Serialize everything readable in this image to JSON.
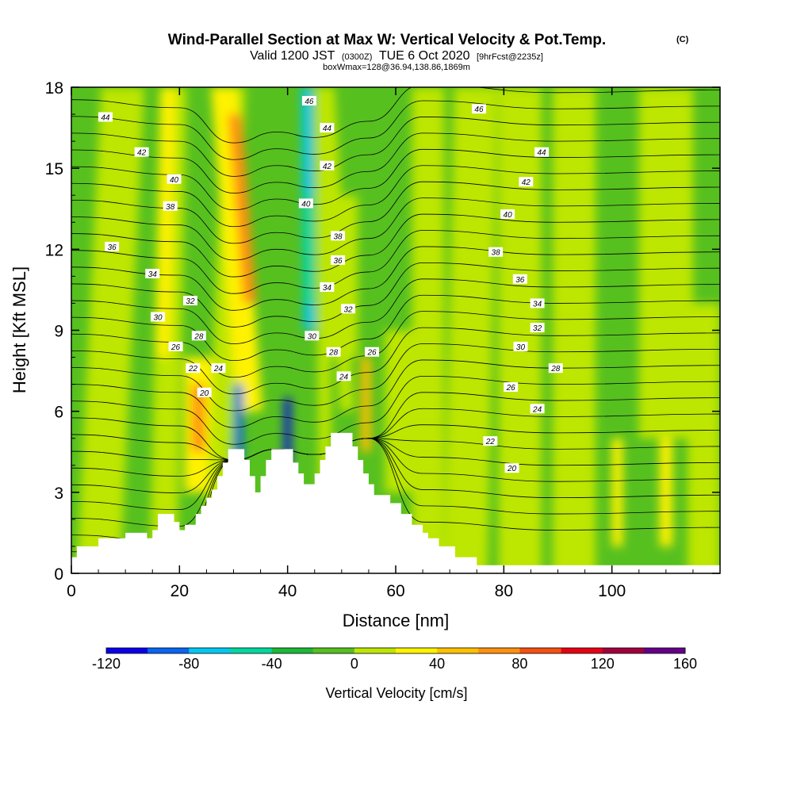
{
  "chart_data": {
    "type": "heatmap",
    "title": "Wind-Parallel Section at Max W: Vertical Velocity & Pot.Temp.",
    "title_tag": "(C)",
    "subtitle": {
      "main_a": "Valid 1200 JST",
      "small_a": "(0300Z)",
      "main_b": "TUE 6 Oct 2020",
      "small_b": "[9hrFcst@2235z]"
    },
    "subtitle2": "boxWmax=128@36.94,138.86,1869m",
    "xlabel": "Distance [nm]",
    "ylabel": "Height [Kft MSL]",
    "xlim": [
      0,
      120
    ],
    "ylim": [
      0,
      18
    ],
    "x_ticks": [
      0,
      20,
      40,
      60,
      80,
      100
    ],
    "y_ticks": [
      0,
      3,
      6,
      9,
      12,
      15,
      18
    ],
    "colorbar": {
      "title": "Vertical Velocity [cm/s]",
      "min": -120,
      "max": 160,
      "step": 20,
      "tick_labels": [
        -120,
        -80,
        -40,
        0,
        40,
        80,
        120,
        160
      ],
      "colors": [
        "#0a00e8",
        "#0a64f0",
        "#00c8f0",
        "#00d8a0",
        "#1db83a",
        "#56c01f",
        "#bde600",
        "#fff200",
        "#ffc000",
        "#ff9010",
        "#f45010",
        "#e60014",
        "#a0003c",
        "#640088"
      ]
    },
    "theta_contour_labels": [
      {
        "value": "44",
        "x": 6.3,
        "y": 16.9
      },
      {
        "value": "42",
        "x": 13,
        "y": 15.6
      },
      {
        "value": "40",
        "x": 19,
        "y": 14.6
      },
      {
        "value": "38",
        "x": 18.3,
        "y": 13.6
      },
      {
        "value": "36",
        "x": 7.5,
        "y": 12.1
      },
      {
        "value": "34",
        "x": 15,
        "y": 11.1
      },
      {
        "value": "32",
        "x": 22,
        "y": 10.1
      },
      {
        "value": "30",
        "x": 16,
        "y": 9.5
      },
      {
        "value": "28",
        "x": 23.6,
        "y": 8.8
      },
      {
        "value": "26",
        "x": 19.3,
        "y": 8.4
      },
      {
        "value": "24",
        "x": 27.2,
        "y": 7.6
      },
      {
        "value": "22",
        "x": 22.5,
        "y": 7.6
      },
      {
        "value": "20",
        "x": 24.6,
        "y": 6.7
      },
      {
        "value": "46",
        "x": 44,
        "y": 17.5
      },
      {
        "value": "44",
        "x": 47.3,
        "y": 16.5
      },
      {
        "value": "42",
        "x": 47.3,
        "y": 15.1
      },
      {
        "value": "40",
        "x": 43.4,
        "y": 13.7
      },
      {
        "value": "38",
        "x": 49.3,
        "y": 12.5
      },
      {
        "value": "36",
        "x": 49.3,
        "y": 11.6
      },
      {
        "value": "34",
        "x": 47.3,
        "y": 10.6
      },
      {
        "value": "32",
        "x": 51.2,
        "y": 9.8
      },
      {
        "value": "30",
        "x": 44.5,
        "y": 8.8
      },
      {
        "value": "28",
        "x": 48.5,
        "y": 8.2
      },
      {
        "value": "26",
        "x": 55.6,
        "y": 8.2
      },
      {
        "value": "24",
        "x": 50.4,
        "y": 7.3
      },
      {
        "value": "46",
        "x": 75.4,
        "y": 17.2
      },
      {
        "value": "44",
        "x": 87,
        "y": 15.6
      },
      {
        "value": "42",
        "x": 84.1,
        "y": 14.5
      },
      {
        "value": "40",
        "x": 80.7,
        "y": 13.3
      },
      {
        "value": "38",
        "x": 78.5,
        "y": 11.9
      },
      {
        "value": "36",
        "x": 83,
        "y": 10.9
      },
      {
        "value": "34",
        "x": 86.2,
        "y": 10
      },
      {
        "value": "32",
        "x": 86.2,
        "y": 9.1
      },
      {
        "value": "30",
        "x": 83.1,
        "y": 8.4
      },
      {
        "value": "28",
        "x": 89.6,
        "y": 7.6
      },
      {
        "value": "26",
        "x": 81.3,
        "y": 6.9
      },
      {
        "value": "24",
        "x": 86.2,
        "y": 6.1
      },
      {
        "value": "22",
        "x": 77.5,
        "y": 4.9
      },
      {
        "value": "20",
        "x": 81.5,
        "y": 3.9
      }
    ]
  }
}
